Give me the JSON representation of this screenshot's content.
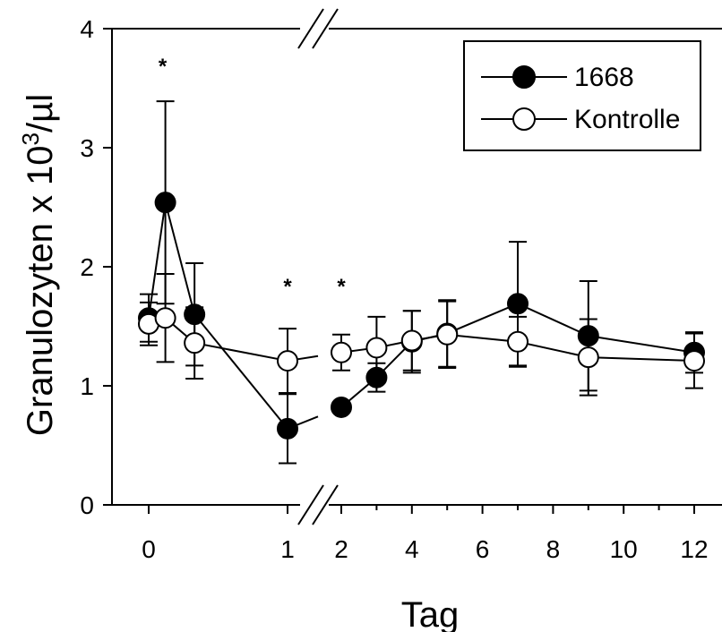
{
  "chart_data": {
    "type": "line",
    "xlabel": "Tag",
    "ylabel_main": "Granulozyten x 10",
    "ylabel_sup": "3",
    "ylabel_tail": "/µl",
    "ylim": [
      0,
      4
    ],
    "yticks": [
      "0",
      "1",
      "2",
      "3",
      "4"
    ],
    "axis_break": "between 1 and 2",
    "xticks": [
      "0",
      "1",
      "2",
      "4",
      "6",
      "8",
      "10",
      "12"
    ],
    "legend_position": "top-right",
    "significance_marks": [
      {
        "label": "*",
        "x": 0.1
      },
      {
        "label": "*",
        "x": 1
      },
      {
        "label": "*",
        "x": 2
      }
    ],
    "series": [
      {
        "name": "1668",
        "marker": "filled-circle",
        "color": "#000000",
        "points": [
          {
            "x": 0,
            "y": 1.57,
            "err": 0.2
          },
          {
            "x": 0.12,
            "y": 2.54,
            "err": 0.85
          },
          {
            "x": 0.33,
            "y": 1.6,
            "err": 0.43
          },
          {
            "x": 1,
            "y": 0.64,
            "err": 0.29
          },
          {
            "x": 2,
            "y": 0.82,
            "err": 0.0
          },
          {
            "x": 3,
            "y": 1.07,
            "err": 0.12
          },
          {
            "x": 4,
            "y": 1.37,
            "err": 0.26
          },
          {
            "x": 5,
            "y": 1.44,
            "err": 0.28
          },
          {
            "x": 7,
            "y": 1.69,
            "err": 0.52
          },
          {
            "x": 9,
            "y": 1.42,
            "err": 0.46
          },
          {
            "x": 12,
            "y": 1.28,
            "err": 0.17
          }
        ]
      },
      {
        "name": "Kontrolle",
        "marker": "open-circle",
        "color": "#ffffff",
        "points": [
          {
            "x": 0,
            "y": 1.52,
            "err": 0.18
          },
          {
            "x": 0.12,
            "y": 1.57,
            "err": 0.37
          },
          {
            "x": 0.33,
            "y": 1.36,
            "err": 0.3
          },
          {
            "x": 1,
            "y": 1.21,
            "err": 0.27
          },
          {
            "x": 2,
            "y": 1.28,
            "err": 0.15
          },
          {
            "x": 3,
            "y": 1.32,
            "err": 0.26
          },
          {
            "x": 4,
            "y": 1.38,
            "err": 0.25
          },
          {
            "x": 5,
            "y": 1.43,
            "err": 0.28
          },
          {
            "x": 7,
            "y": 1.37,
            "err": 0.21
          },
          {
            "x": 9,
            "y": 1.24,
            "err": 0.32
          },
          {
            "x": 12,
            "y": 1.21,
            "err": 0.23
          }
        ]
      }
    ]
  }
}
